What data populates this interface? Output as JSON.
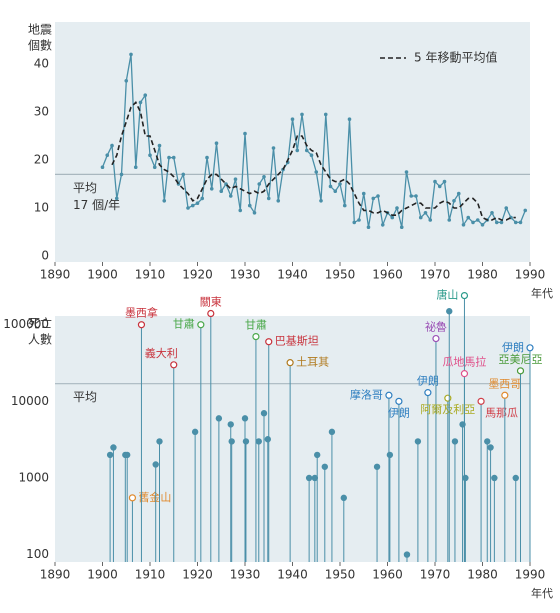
{
  "chart_data": [
    {
      "type": "line",
      "y_label": [
        "地震",
        "個數"
      ],
      "x_label": "年代",
      "xlim": [
        1890,
        1990
      ],
      "xticks": [
        1890,
        1900,
        1910,
        1920,
        1930,
        1940,
        1950,
        1960,
        1970,
        1980,
        1990
      ],
      "ylim": [
        -1.25,
        48.75
      ],
      "yticks": [
        0,
        10,
        20,
        30,
        40
      ],
      "legend": "upper right",
      "reference": {
        "value": 17,
        "color": "#a9b7bf",
        "label": [
          "平均",
          "17 個/年"
        ]
      },
      "x": [
        1900,
        1901,
        1902,
        1903,
        1904,
        1905,
        1906,
        1907,
        1908,
        1909,
        1910,
        1911,
        1912,
        1913,
        1914,
        1915,
        1916,
        1917,
        1918,
        1919,
        1920,
        1921,
        1922,
        1923,
        1924,
        1925,
        1926,
        1927,
        1928,
        1929,
        1930,
        1931,
        1932,
        1933,
        1934,
        1935,
        1936,
        1937,
        1938,
        1939,
        1940,
        1941,
        1942,
        1943,
        1944,
        1945,
        1946,
        1947,
        1948,
        1949,
        1950,
        1951,
        1952,
        1953,
        1954,
        1955,
        1956,
        1957,
        1958,
        1959,
        1960,
        1961,
        1962,
        1963,
        1964,
        1965,
        1966,
        1967,
        1968,
        1969,
        1970,
        1971,
        1972,
        1973,
        1974,
        1975,
        1976,
        1977,
        1978,
        1979,
        1980,
        1981,
        1982,
        1983,
        1984,
        1985,
        1986,
        1987,
        1988,
        1989
      ],
      "series": [
        {
          "color": "#4a8fa8",
          "style": "solid",
          "values": [
            18.5,
            21,
            23,
            12,
            17,
            36.5,
            42,
            18.5,
            32,
            33.5,
            21,
            18.5,
            23,
            11.5,
            20.5,
            20.5,
            15,
            17,
            10,
            10.5,
            11,
            12,
            20.5,
            14,
            23.5,
            13.5,
            15,
            12.5,
            16,
            9.5,
            25.5,
            10.5,
            9,
            15,
            16.5,
            12,
            22.5,
            11.5,
            18,
            19.5,
            28.5,
            22,
            29.5,
            22,
            21,
            17.5,
            11.5,
            29.5,
            14.5,
            13.5,
            15,
            10.5,
            28.5,
            7,
            7.5,
            13,
            6,
            12,
            12.5,
            6.5,
            9,
            8,
            10,
            6,
            17.5,
            12.5,
            12.5,
            8,
            9,
            7.5,
            15.5,
            14.5,
            15.5,
            7.5,
            11.5,
            13,
            6.5,
            8,
            7,
            7.5,
            6.5,
            7.5,
            9,
            7,
            7,
            10,
            8,
            7,
            7,
            9.5
          ]
        },
        {
          "name": "5 年移動平均值",
          "color": "#222222",
          "style": "dashed",
          "values": [
            null,
            null,
            19,
            21,
            25,
            28,
            31,
            32,
            30,
            25,
            25,
            22,
            19,
            18,
            17.5,
            16.5,
            15,
            14,
            13,
            11.5,
            12,
            14,
            16,
            17,
            17,
            16,
            15,
            14,
            14.5,
            14,
            13.5,
            13,
            13.5,
            13,
            13.5,
            15,
            16,
            17,
            18,
            20,
            22,
            25,
            25,
            23,
            22,
            21.5,
            19,
            17.5,
            16,
            15.5,
            15.5,
            16,
            15,
            13,
            11,
            9.5,
            9.5,
            9,
            9,
            9.5,
            9,
            8.5,
            8.5,
            9.5,
            10,
            10.5,
            11,
            11,
            10,
            10,
            10,
            11,
            11.5,
            11,
            10,
            10,
            11,
            12,
            12,
            11,
            8,
            7.5,
            7.5,
            8,
            7.5,
            7.5,
            8,
            8,
            null,
            null
          ]
        }
      ]
    },
    {
      "type": "stem",
      "y_label": [
        "死亡",
        "人數"
      ],
      "x_label": "年代",
      "xlim": [
        1890,
        1990
      ],
      "xticks": [
        1890,
        1900,
        1910,
        1920,
        1930,
        1940,
        1950,
        1960,
        1970,
        1980,
        1990
      ],
      "ylim": [
        80,
        130000
      ],
      "yticks": [
        100,
        1000,
        10000,
        100000
      ],
      "log_y": true,
      "color": "#4a8fa8",
      "reference": {
        "value": 17000,
        "color": "#a9b7bf",
        "label": [
          "平均"
        ]
      },
      "x": [
        1901.6,
        1902.3,
        1904.8,
        1905.2,
        1906.3,
        1908.2,
        1911.2,
        1912,
        1915,
        1919.5,
        1920.7,
        1922.8,
        1924.5,
        1927,
        1927.2,
        1930,
        1930.2,
        1932.3,
        1932.9,
        1934,
        1934.8,
        1935,
        1939.5,
        1943.5,
        1944.7,
        1945.2,
        1946.8,
        1948.3,
        1950.8,
        1957.8,
        1960.3,
        1960.5,
        1962.4,
        1964.1,
        1966.4,
        1968.5,
        1970.2,
        1972.7,
        1973,
        1974.2,
        1975.8,
        1976.2,
        1976.2,
        1976.4,
        1979.7,
        1981,
        1981.7,
        1982.5,
        1984.7,
        1987,
        1988,
        1990
      ],
      "values": [
        2000,
        2500,
        2000,
        2000,
        550,
        100000,
        1500,
        3000,
        30000,
        4000,
        100000,
        140000,
        6000,
        5000,
        3000,
        6000,
        3000,
        70000,
        3000,
        7000,
        3200,
        60000,
        32000,
        1000,
        1000,
        2000,
        1400,
        4000,
        550,
        1400,
        12000,
        2000,
        10000,
        100,
        3000,
        13000,
        66000,
        11000,
        150000,
        3000,
        5000,
        240000,
        23000,
        1000,
        10000,
        3000,
        2500,
        1000,
        12000,
        1000,
        25000,
        50000
      ],
      "labels": [
        null,
        null,
        null,
        null,
        "舊金山",
        "墨西拿",
        null,
        null,
        "義大利",
        null,
        "甘肅",
        "關東",
        null,
        null,
        null,
        null,
        null,
        "甘肅",
        null,
        null,
        null,
        "巴基斯坦",
        "土耳其",
        null,
        null,
        null,
        null,
        null,
        null,
        null,
        "摩洛哥",
        null,
        "伊朗",
        null,
        null,
        "伊朗",
        "祕魯",
        "阿爾及利亞",
        null,
        null,
        null,
        "唐山",
        "瓜地馬拉",
        null,
        "馬那瓜",
        null,
        null,
        null,
        "墨西哥",
        null,
        "亞美尼亞",
        "伊朗"
      ],
      "colors": [
        null,
        null,
        null,
        null,
        "#e08a2e",
        "#c8323c",
        null,
        null,
        "#c8323c",
        null,
        "#4aa84a",
        "#c8323c",
        null,
        null,
        null,
        null,
        null,
        "#4aa84a",
        null,
        null,
        null,
        "#c8323c",
        "#b07a1e",
        null,
        null,
        null,
        null,
        null,
        null,
        null,
        "#2f7fc0",
        null,
        "#2f7fc0",
        null,
        null,
        "#2f7fc0",
        "#9a4fb5",
        "#aaaa22",
        null,
        null,
        null,
        "#2a9a8a",
        "#e0508a",
        null,
        "#d0404a",
        null,
        null,
        null,
        "#e08a2e",
        null,
        "#4a9a3a",
        "#2f7fc0"
      ]
    }
  ]
}
